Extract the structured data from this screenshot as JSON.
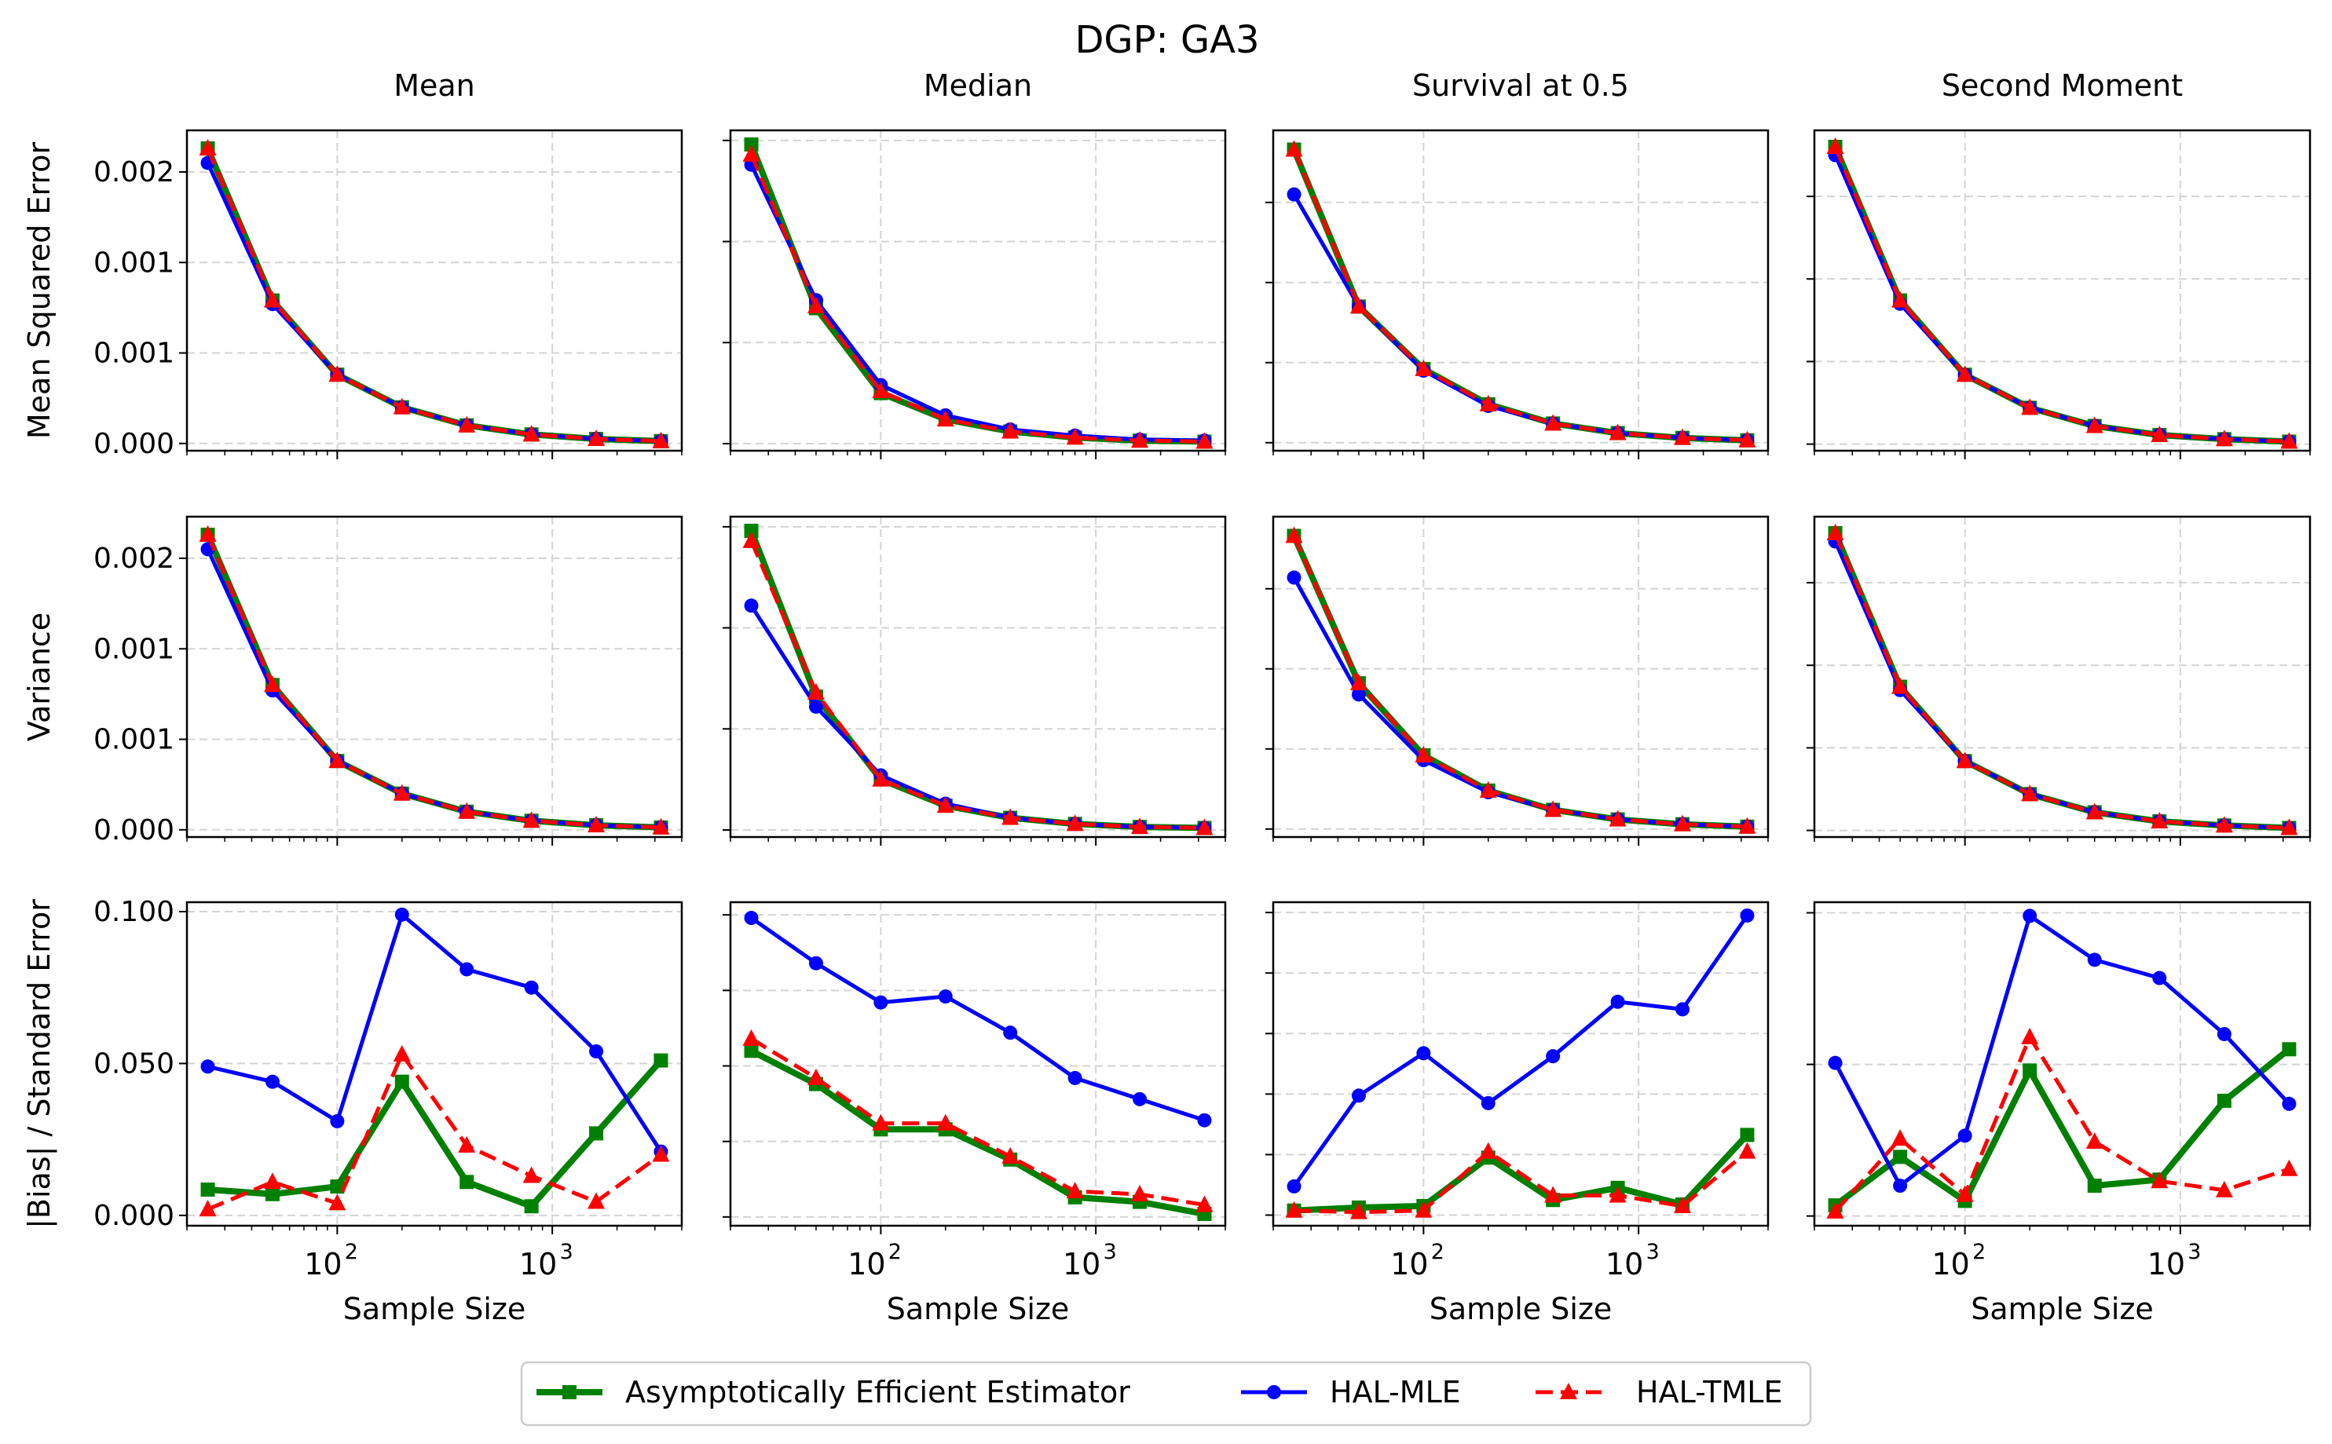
{
  "figure": {
    "title": "DGP: GA3",
    "columns": [
      "Mean",
      "Median",
      "Survival at 0.5",
      "Second Moment"
    ],
    "row_labels": [
      "Mean Squared Error",
      "Variance",
      "|Bias| / Standard Error"
    ],
    "xlabel": "Sample Size",
    "x_tick_labels": [
      "10",
      "2",
      "10",
      "3"
    ]
  },
  "legend": {
    "position": "bottom-center",
    "entries": [
      {
        "name": "Asymptotically Efficient Estimator",
        "color": "#008000",
        "marker": "square",
        "linestyle": "solid"
      },
      {
        "name": "HAL-MLE",
        "color": "#0000ff",
        "marker": "circle",
        "linestyle": "solid"
      },
      {
        "name": "HAL-TMLE",
        "color": "#ff0000",
        "marker": "triangle",
        "linestyle": "dashed"
      }
    ]
  },
  "chart_data": [
    {
      "type": "line",
      "title": "Mean",
      "row": "Mean Squared Error",
      "xlabel": "",
      "ylabel": "Mean Squared Error",
      "xscale": "log",
      "xlim": [
        20,
        4000
      ],
      "ylim": [
        -4e-05,
        0.00173
      ],
      "yticks": [
        0,
        0.0005,
        0.001,
        0.0015
      ],
      "ytick_labels": [
        "0.000",
        "0.001",
        "0.001",
        "0.002"
      ],
      "x": [
        25,
        50,
        100,
        200,
        400,
        800,
        1600,
        3200
      ],
      "series": [
        {
          "name": "Asymptotically Efficient Estimator",
          "values": [
            0.00163,
            0.00079,
            0.00038,
            0.0002,
            0.0001,
            5e-05,
            2.5e-05,
            1.3e-05
          ]
        },
        {
          "name": "HAL-MLE",
          "values": [
            0.00155,
            0.00077,
            0.00038,
            0.0002,
            0.0001,
            5e-05,
            2.5e-05,
            1.3e-05
          ]
        },
        {
          "name": "HAL-TMLE",
          "values": [
            0.00163,
            0.00079,
            0.00038,
            0.0002,
            0.0001,
            5e-05,
            2.5e-05,
            1.3e-05
          ]
        }
      ]
    },
    {
      "type": "line",
      "title": "Median",
      "row": "Mean Squared Error",
      "xlabel": "",
      "ylabel": "",
      "xscale": "log",
      "xlim": [
        20,
        4000
      ],
      "ylim": [
        -3.5e-05,
        0.00155
      ],
      "yticks": [
        0,
        0.0005,
        0.001,
        0.0015
      ],
      "ytick_labels": [
        "",
        "",
        "",
        ""
      ],
      "x": [
        25,
        50,
        100,
        200,
        400,
        800,
        1600,
        3200
      ],
      "series": [
        {
          "name": "Asymptotically Efficient Estimator",
          "values": [
            0.00148,
            0.00067,
            0.00025,
            0.00012,
            6e-05,
            3e-05,
            1.5e-05,
            1e-05
          ]
        },
        {
          "name": "HAL-MLE",
          "values": [
            0.00138,
            0.00071,
            0.00029,
            0.00014,
            7e-05,
            4e-05,
            2e-05,
            1.5e-05
          ]
        },
        {
          "name": "HAL-TMLE",
          "values": [
            0.00143,
            0.00068,
            0.00026,
            0.00012,
            6e-05,
            3e-05,
            1.5e-05,
            1e-05
          ]
        }
      ]
    },
    {
      "type": "line",
      "title": "Survival at 0.5",
      "row": "Mean Squared Error",
      "xlabel": "",
      "ylabel": "",
      "xscale": "log",
      "xlim": [
        20,
        4000
      ],
      "ylim": [
        -5e-05,
        0.00195
      ],
      "yticks": [
        0,
        0.0005,
        0.001,
        0.0015
      ],
      "ytick_labels": [
        "",
        "",
        "",
        ""
      ],
      "x": [
        25,
        50,
        100,
        200,
        400,
        800,
        1600,
        3200
      ],
      "series": [
        {
          "name": "Asymptotically Efficient Estimator",
          "values": [
            0.00183,
            0.00085,
            0.00046,
            0.00024,
            0.00012,
            6e-05,
            3e-05,
            1.5e-05
          ]
        },
        {
          "name": "HAL-MLE",
          "values": [
            0.00155,
            0.00085,
            0.00045,
            0.00023,
            0.00012,
            6e-05,
            3e-05,
            1.5e-05
          ]
        },
        {
          "name": "HAL-TMLE",
          "values": [
            0.00183,
            0.00085,
            0.00046,
            0.00024,
            0.00012,
            6e-05,
            3e-05,
            1.5e-05
          ]
        }
      ]
    },
    {
      "type": "line",
      "title": "Second Moment",
      "row": "Mean Squared Error",
      "xlabel": "",
      "ylabel": "",
      "xscale": "log",
      "xlim": [
        20,
        4000
      ],
      "ylim": [
        -4e-05,
        0.0019
      ],
      "yticks": [
        0,
        0.0005,
        0.001,
        0.0015
      ],
      "ytick_labels": [
        "",
        "",
        "",
        ""
      ],
      "x": [
        25,
        50,
        100,
        200,
        400,
        800,
        1600,
        3200
      ],
      "series": [
        {
          "name": "Asymptotically Efficient Estimator",
          "values": [
            0.0018,
            0.00087,
            0.00042,
            0.00022,
            0.00011,
            5.5e-05,
            3e-05,
            1.5e-05
          ]
        },
        {
          "name": "HAL-MLE",
          "values": [
            0.00175,
            0.00085,
            0.00042,
            0.00022,
            0.00011,
            5.5e-05,
            3e-05,
            1.5e-05
          ]
        },
        {
          "name": "HAL-TMLE",
          "values": [
            0.0018,
            0.00087,
            0.00042,
            0.00022,
            0.00011,
            5.5e-05,
            3e-05,
            1.5e-05
          ]
        }
      ]
    },
    {
      "type": "line",
      "title": "Mean",
      "row": "Variance",
      "xlabel": "",
      "ylabel": "Variance",
      "xscale": "log",
      "xlim": [
        20,
        4000
      ],
      "ylim": [
        -4e-05,
        0.00173
      ],
      "yticks": [
        0,
        0.0005,
        0.001,
        0.0015
      ],
      "ytick_labels": [
        "0.000",
        "0.001",
        "0.001",
        "0.002"
      ],
      "x": [
        25,
        50,
        100,
        200,
        400,
        800,
        1600,
        3200
      ],
      "series": [
        {
          "name": "Asymptotically Efficient Estimator",
          "values": [
            0.00163,
            0.0008,
            0.00038,
            0.0002,
            0.0001,
            5e-05,
            2.5e-05,
            1.3e-05
          ]
        },
        {
          "name": "HAL-MLE",
          "values": [
            0.00155,
            0.00077,
            0.00038,
            0.0002,
            0.0001,
            5e-05,
            2.5e-05,
            1.3e-05
          ]
        },
        {
          "name": "HAL-TMLE",
          "values": [
            0.00163,
            0.0008,
            0.00038,
            0.0002,
            0.0001,
            5e-05,
            2.5e-05,
            1.3e-05
          ]
        }
      ]
    },
    {
      "type": "line",
      "title": "Median",
      "row": "Variance",
      "xlabel": "",
      "ylabel": "",
      "xscale": "log",
      "xlim": [
        20,
        4000
      ],
      "ylim": [
        -3.5e-05,
        0.00155
      ],
      "yticks": [
        0,
        0.0005,
        0.001,
        0.0015
      ],
      "ytick_labels": [
        "",
        "",
        "",
        ""
      ],
      "x": [
        25,
        50,
        100,
        200,
        400,
        800,
        1600,
        3200
      ],
      "series": [
        {
          "name": "Asymptotically Efficient Estimator",
          "values": [
            0.00148,
            0.00066,
            0.00025,
            0.00012,
            6e-05,
            3e-05,
            1.5e-05,
            1e-05
          ]
        },
        {
          "name": "HAL-MLE",
          "values": [
            0.00111,
            0.00061,
            0.00027,
            0.00013,
            6e-05,
            3e-05,
            1.5e-05,
            1e-05
          ]
        },
        {
          "name": "HAL-TMLE",
          "values": [
            0.00143,
            0.00068,
            0.00025,
            0.00012,
            6e-05,
            3e-05,
            1.5e-05,
            1e-05
          ]
        }
      ]
    },
    {
      "type": "line",
      "title": "Survival at 0.5",
      "row": "Variance",
      "xlabel": "",
      "ylabel": "",
      "xscale": "log",
      "xlim": [
        20,
        4000
      ],
      "ylim": [
        -5e-05,
        0.00195
      ],
      "yticks": [
        0,
        0.0005,
        0.001,
        0.0015
      ],
      "ytick_labels": [
        "",
        "",
        "",
        ""
      ],
      "x": [
        25,
        50,
        100,
        200,
        400,
        800,
        1600,
        3200
      ],
      "series": [
        {
          "name": "Asymptotically Efficient Estimator",
          "values": [
            0.00183,
            0.00091,
            0.00046,
            0.00024,
            0.00012,
            6e-05,
            3e-05,
            1.5e-05
          ]
        },
        {
          "name": "HAL-MLE",
          "values": [
            0.00157,
            0.00084,
            0.00043,
            0.00023,
            0.00012,
            6e-05,
            3e-05,
            1.5e-05
          ]
        },
        {
          "name": "HAL-TMLE",
          "values": [
            0.00183,
            0.00091,
            0.00046,
            0.00024,
            0.00012,
            6e-05,
            3e-05,
            1.5e-05
          ]
        }
      ]
    },
    {
      "type": "line",
      "title": "Second Moment",
      "row": "Variance",
      "xlabel": "",
      "ylabel": "",
      "xscale": "log",
      "xlim": [
        20,
        4000
      ],
      "ylim": [
        -4e-05,
        0.0019
      ],
      "yticks": [
        0,
        0.0005,
        0.001,
        0.0015
      ],
      "ytick_labels": [
        "",
        "",
        "",
        ""
      ],
      "x": [
        25,
        50,
        100,
        200,
        400,
        800,
        1600,
        3200
      ],
      "series": [
        {
          "name": "Asymptotically Efficient Estimator",
          "values": [
            0.0018,
            0.00087,
            0.00042,
            0.00022,
            0.00011,
            5.5e-05,
            3e-05,
            1.5e-05
          ]
        },
        {
          "name": "HAL-MLE",
          "values": [
            0.00175,
            0.00085,
            0.00042,
            0.00022,
            0.00011,
            5.5e-05,
            3e-05,
            1.5e-05
          ]
        },
        {
          "name": "HAL-TMLE",
          "values": [
            0.0018,
            0.00087,
            0.00042,
            0.00022,
            0.00011,
            5.5e-05,
            3e-05,
            1.5e-05
          ]
        }
      ]
    },
    {
      "type": "line",
      "title": "Mean",
      "row": "|Bias| / Standard Error",
      "xlabel": "Sample Size",
      "ylabel": "|Bias| / Standard Error",
      "xscale": "log",
      "xlim": [
        20,
        4000
      ],
      "ylim": [
        -0.0034,
        0.1031
      ],
      "yticks": [
        0,
        0.05,
        0.1
      ],
      "ytick_labels": [
        "0.000",
        "0.050",
        "0.100"
      ],
      "x": [
        25,
        50,
        100,
        200,
        400,
        800,
        1600,
        3200
      ],
      "series": [
        {
          "name": "Asymptotically Efficient Estimator",
          "values": [
            0.0085,
            0.007,
            0.0095,
            0.044,
            0.011,
            0.003,
            0.027,
            0.051
          ]
        },
        {
          "name": "HAL-MLE",
          "values": [
            0.049,
            0.044,
            0.031,
            0.099,
            0.081,
            0.075,
            0.054,
            0.021
          ]
        },
        {
          "name": "HAL-TMLE",
          "values": [
            0.002,
            0.011,
            0.004,
            0.053,
            0.023,
            0.013,
            0.0045,
            0.02
          ]
        }
      ]
    },
    {
      "type": "line",
      "title": "Median",
      "row": "|Bias| / Standard Error",
      "xlabel": "Sample Size",
      "ylabel": "",
      "xscale": "log",
      "xlim": [
        20,
        4000
      ],
      "ylim": [
        -0.0029,
        0.1042
      ],
      "yticks": [
        0,
        0.025,
        0.05,
        0.075,
        0.1
      ],
      "ytick_labels": [
        "",
        "",
        "",
        "",
        ""
      ],
      "x": [
        25,
        50,
        100,
        200,
        400,
        800,
        1600,
        3200
      ],
      "series": [
        {
          "name": "Asymptotically Efficient Estimator",
          "values": [
            0.055,
            0.044,
            0.029,
            0.029,
            0.019,
            0.0065,
            0.005,
            0.001
          ]
        },
        {
          "name": "HAL-MLE",
          "values": [
            0.099,
            0.084,
            0.071,
            0.073,
            0.061,
            0.046,
            0.039,
            0.032
          ]
        },
        {
          "name": "HAL-TMLE",
          "values": [
            0.059,
            0.046,
            0.031,
            0.031,
            0.02,
            0.0085,
            0.0075,
            0.004
          ]
        }
      ]
    },
    {
      "type": "line",
      "title": "Survival at 0.5",
      "row": "|Bias| / Standard Error",
      "xlabel": "Sample Size",
      "ylabel": "",
      "xscale": "log",
      "xlim": [
        20,
        4000
      ],
      "ylim": [
        -0.0035,
        0.1034
      ],
      "yticks": [
        0,
        0.02,
        0.04,
        0.06,
        0.08,
        0.1
      ],
      "ytick_labels": [
        "",
        "",
        "",
        "",
        "",
        ""
      ],
      "x": [
        25,
        50,
        100,
        200,
        400,
        800,
        1600,
        3200
      ],
      "series": [
        {
          "name": "Asymptotically Efficient Estimator",
          "values": [
            0.0015,
            0.0025,
            0.003,
            0.019,
            0.005,
            0.009,
            0.0035,
            0.0265
          ]
        },
        {
          "name": "HAL-MLE",
          "values": [
            0.0095,
            0.0395,
            0.0535,
            0.037,
            0.0525,
            0.0705,
            0.068,
            0.099
          ]
        },
        {
          "name": "HAL-TMLE",
          "values": [
            0.0015,
            0.001,
            0.0015,
            0.021,
            0.0065,
            0.0065,
            0.003,
            0.021
          ]
        }
      ]
    },
    {
      "type": "line",
      "title": "Second Moment",
      "row": "|Bias| / Standard Error",
      "xlabel": "Sample Size",
      "ylabel": "",
      "xscale": "log",
      "xlim": [
        20,
        4000
      ],
      "ylim": [
        -0.0032,
        0.1035
      ],
      "yticks": [
        0,
        0.05,
        0.1
      ],
      "ytick_labels": [
        "",
        "",
        ""
      ],
      "x": [
        25,
        50,
        100,
        200,
        400,
        800,
        1600,
        3200
      ],
      "series": [
        {
          "name": "Asymptotically Efficient Estimator",
          "values": [
            0.0035,
            0.0195,
            0.005,
            0.048,
            0.01,
            0.012,
            0.038,
            0.055
          ]
        },
        {
          "name": "HAL-MLE",
          "values": [
            0.0505,
            0.01,
            0.0265,
            0.099,
            0.0845,
            0.0785,
            0.06,
            0.037
          ]
        },
        {
          "name": "HAL-TMLE",
          "values": [
            0.0015,
            0.0255,
            0.007,
            0.059,
            0.0245,
            0.0115,
            0.0085,
            0.0155
          ]
        }
      ]
    }
  ]
}
